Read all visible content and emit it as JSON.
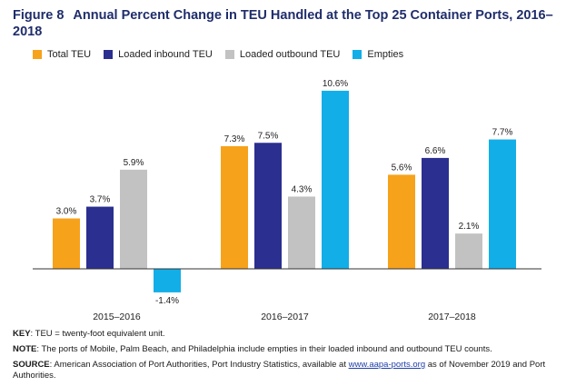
{
  "figure": {
    "number": "Figure 8",
    "title": "Annual Percent Change in TEU Handled at the Top 25 Container Ports, 2016–2018"
  },
  "colors": {
    "total": "#f7a21b",
    "inbound": "#2b2f8f",
    "outbound": "#c2c2c2",
    "empties": "#12aee8"
  },
  "chart_data": {
    "type": "bar",
    "title": "Annual Percent Change in TEU Handled at the Top 25 Container Ports, 2016–2018",
    "categories": [
      "2015–2016",
      "2016–2017",
      "2017–2018"
    ],
    "series": [
      {
        "name": "Total TEU",
        "color": "#f7a21b",
        "values": [
          3.0,
          7.3,
          5.6
        ],
        "labels": [
          "3.0%",
          "7.3%",
          "5.6%"
        ]
      },
      {
        "name": "Loaded inbound TEU",
        "color": "#2b2f8f",
        "values": [
          3.7,
          7.5,
          6.6
        ],
        "labels": [
          "3.7%",
          "7.5%",
          "6.6%"
        ]
      },
      {
        "name": "Loaded outbound TEU",
        "color": "#c2c2c2",
        "values": [
          5.9,
          4.3,
          2.1
        ],
        "labels": [
          "5.9%",
          "4.3%",
          "2.1%"
        ]
      },
      {
        "name": "Empties",
        "color": "#12aee8",
        "values": [
          -1.4,
          10.6,
          7.7
        ],
        "labels": [
          "-1.4%",
          "10.6%",
          "7.7%"
        ]
      }
    ],
    "ylim": [
      -2,
      11
    ],
    "legend_position": "top-left",
    "grid": false
  },
  "notes": {
    "key_label": "KEY",
    "key_text": ": TEU = twenty-foot equivalent unit.",
    "note_label": "NOTE",
    "note_text": ": The ports of Mobile, Palm Beach, and Philadelphia include empties in their loaded inbound and outbound TEU counts.",
    "source_label": "SOURCE",
    "source_text": ": American Association of Port Authorities, Port Industry Statistics, available at ",
    "source_link": "www.aapa-ports.org",
    "source_tail": " as of November 2019 and Port Authorities."
  }
}
